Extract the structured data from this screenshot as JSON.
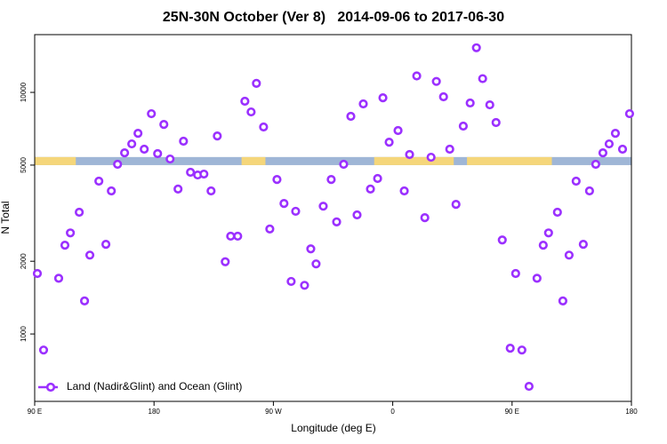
{
  "chart_data": {
    "type": "scatter",
    "title": "25N-30N October (Ver 8)   2014-09-06 to 2017-06-30",
    "x_label": "Longitude (deg E)",
    "y_label": "N Total",
    "xlim": [
      90,
      540
    ],
    "xticks": [
      {
        "value": 90,
        "label": "90 E"
      },
      180,
      {
        "value": 270,
        "label": "90 W"
      },
      {
        "value": 360,
        "label": "0"
      },
      {
        "value": 450,
        "label": "90 E"
      },
      {
        "value": 540,
        "label": "180"
      }
    ],
    "ylim": [
      526,
      17340
    ],
    "yticks": [
      1000,
      2000,
      5000,
      10000
    ],
    "y_log": true,
    "legend_position": "lower left",
    "band": {
      "ylim": [
        5000,
        5400
      ],
      "ocean_color": "#9fb6d6",
      "land_color": "#f5d67a",
      "land": [
        [
          90,
          121
        ],
        [
          246,
          264
        ],
        [
          346,
          406
        ],
        [
          416,
          480
        ]
      ]
    },
    "series": [
      {
        "name": "Land (Nadir&Glint) and Ocean (Glint)",
        "color": "#9b30ff",
        "x": [
          92.0,
          96.7,
          108.1,
          112.8,
          116.9,
          123.6,
          127.6,
          131.6,
          138.4,
          143.7,
          147.8,
          152.5,
          157.8,
          163.2,
          167.9,
          172.6,
          178.0,
          182.7,
          187.4,
          192.1,
          198.1,
          202.2,
          207.5,
          212.9,
          217.6,
          223.0,
          227.7,
          233.7,
          237.8,
          243.1,
          248.5,
          253.2,
          257.2,
          262.6,
          267.3,
          272.7,
          278.0,
          283.4,
          286.8,
          293.5,
          298.2,
          302.2,
          307.6,
          313.6,
          317.7,
          323.0,
          328.4,
          333.1,
          337.8,
          343.2,
          348.6,
          352.6,
          357.3,
          364.0,
          368.7,
          372.7,
          378.1,
          384.2,
          388.9,
          392.9,
          398.3,
          403.0,
          407.7,
          413.2,
          418.4,
          423.1,
          427.8,
          433.2,
          437.9,
          442.6,
          448.6,
          452.7,
          457.4,
          462.8,
          468.8,
          473.5,
          477.5,
          484.2,
          488.3,
          493.0,
          498.3,
          503.7,
          508.4,
          513.1,
          518.5,
          523.2,
          527.9,
          533.3,
          538.6
        ],
        "values": [
          1780,
          858,
          1700,
          2330,
          2620,
          3190,
          1370,
          2120,
          4290,
          2350,
          3910,
          5040,
          5620,
          6120,
          6770,
          5820,
          8160,
          5580,
          7370,
          5300,
          3980,
          6280,
          4670,
          4550,
          4590,
          3910,
          6600,
          1990,
          2540,
          2540,
          9190,
          8300,
          10900,
          7190,
          2720,
          4360,
          3470,
          1650,
          3220,
          1590,
          2250,
          1950,
          3380,
          4360,
          2910,
          5040,
          7960,
          3110,
          8960,
          3980,
          4400,
          9500,
          6220,
          6950,
          3910,
          5530,
          11700,
          3030,
          5390,
          11100,
          9590,
          5820,
          3440,
          7250,
          9040,
          15300,
          11400,
          8880,
          7500,
          2450,
          873,
          1780,
          858,
          607,
          1700,
          2330,
          2620,
          3190,
          1370,
          2120,
          4290,
          2350,
          3910,
          5040,
          5620,
          6120,
          6770,
          5820,
          8160
        ]
      }
    ]
  }
}
